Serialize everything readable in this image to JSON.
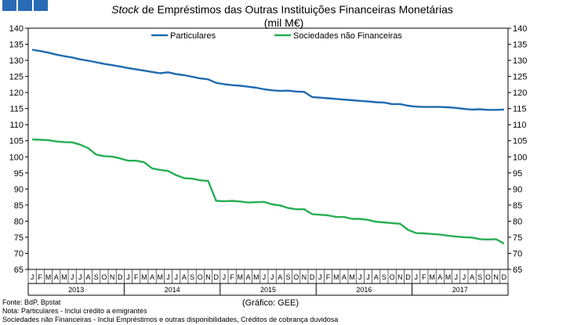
{
  "chart_data": {
    "type": "line",
    "title_italic": "Stock",
    "title_rest": " de Empréstimos das Outras Instituições Financeiras Monetárias",
    "subtitle": "(mil M€)",
    "ylim": [
      65,
      140
    ],
    "yticks": [
      65,
      70,
      75,
      80,
      85,
      90,
      95,
      100,
      105,
      110,
      115,
      120,
      125,
      130,
      135,
      140
    ],
    "month_labels": [
      "J",
      "F",
      "M",
      "A",
      "M",
      "J",
      "J",
      "A",
      "S",
      "O",
      "N",
      "D"
    ],
    "years": [
      "2013",
      "2014",
      "2015",
      "2016",
      "2017"
    ],
    "legend_position": "top-center",
    "grid": false,
    "series": [
      {
        "name": "Particulares",
        "color": "#1f6ab0",
        "values": [
          133.3,
          132.9,
          132.4,
          131.8,
          131.3,
          130.9,
          130.3,
          129.9,
          129.4,
          128.9,
          128.5,
          128.1,
          127.6,
          127.2,
          126.8,
          126.4,
          126.0,
          126.3,
          125.7,
          125.4,
          124.9,
          124.4,
          124.1,
          123.0,
          122.6,
          122.3,
          122.1,
          121.8,
          121.5,
          121.0,
          120.7,
          120.5,
          120.6,
          120.3,
          120.2,
          118.6,
          118.4,
          118.2,
          118.0,
          117.8,
          117.6,
          117.4,
          117.2,
          117.0,
          116.9,
          116.4,
          116.4,
          115.9,
          115.6,
          115.5,
          115.5,
          115.5,
          115.4,
          115.2,
          114.9,
          114.7,
          114.8,
          114.6,
          114.6,
          114.7
        ]
      },
      {
        "name": "Sociedades não Financeiras",
        "color": "#27ae54",
        "values": [
          105.4,
          105.3,
          105.2,
          104.8,
          104.6,
          104.5,
          103.8,
          102.7,
          100.7,
          100.2,
          100.1,
          99.5,
          98.8,
          98.8,
          98.3,
          96.4,
          95.9,
          95.6,
          94.3,
          93.4,
          93.2,
          92.7,
          92.5,
          86.3,
          86.2,
          86.3,
          86.1,
          85.8,
          85.9,
          86.0,
          85.2,
          84.9,
          84.1,
          83.7,
          83.7,
          82.2,
          82.0,
          81.8,
          81.3,
          81.3,
          80.7,
          80.7,
          80.4,
          79.8,
          79.6,
          79.4,
          79.2,
          77.3,
          76.3,
          76.2,
          76.0,
          75.8,
          75.5,
          75.2,
          75.0,
          74.9,
          74.4,
          74.3,
          74.4,
          73.0
        ]
      }
    ]
  },
  "source_label": "(Gráfico: GEE)",
  "footnotes": [
    "Fonte: BdP, Bpstat",
    "Nota: Particulares - Inclui crédito a emigrantes",
    "Sociedades não Financeiras - Inclui Empréstimos e outras disponibilidades, Créditos de cobrança duvidosa"
  ]
}
